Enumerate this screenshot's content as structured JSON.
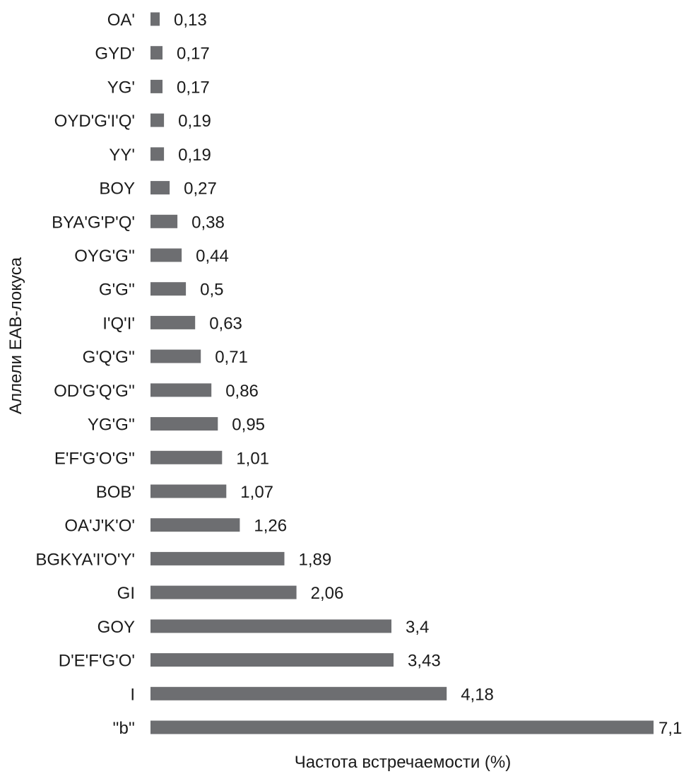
{
  "chart_data": {
    "type": "bar",
    "orientation": "horizontal",
    "xlabel": "Частота встречаемости (%)",
    "ylabel": "Аллели ЕАВ-локуса",
    "categories": [
      "OA'",
      "GYD'",
      "YG'",
      "OYD'G'I'Q'",
      "YY'",
      "BOY",
      "BYA'G'P'Q'",
      "OYG'G''",
      "G'G''",
      "I'Q'I'",
      "G'Q'G''",
      "OD'G'Q'G''",
      "YG'G''",
      "E'F'G'O'G''",
      "BOB'",
      "OA'J'K'O'",
      "BGKYA'I'O'Y'",
      "GI",
      "GOY",
      "D'E'F'G'O'",
      "I",
      "''b''"
    ],
    "values": [
      0.13,
      0.17,
      0.17,
      0.19,
      0.19,
      0.27,
      0.38,
      0.44,
      0.5,
      0.63,
      0.71,
      0.86,
      0.95,
      1.01,
      1.07,
      1.26,
      1.89,
      2.06,
      3.4,
      3.43,
      4.18,
      7.1
    ],
    "value_labels": [
      "0,13",
      "0,17",
      "0,17",
      "0,19",
      "0,19",
      "0,27",
      "0,38",
      "0,44",
      "0,5",
      "0,63",
      "0,71",
      "0,86",
      "0,95",
      "1,01",
      "1,07",
      "1,26",
      "1,89",
      "2,06",
      "3,4",
      "3,43",
      "4,18",
      "7,1"
    ],
    "xlim": [
      0,
      7.1
    ],
    "grid": false,
    "legend": "none",
    "bar_color": "#6d6e71",
    "text_color": "#1a1a1a"
  }
}
